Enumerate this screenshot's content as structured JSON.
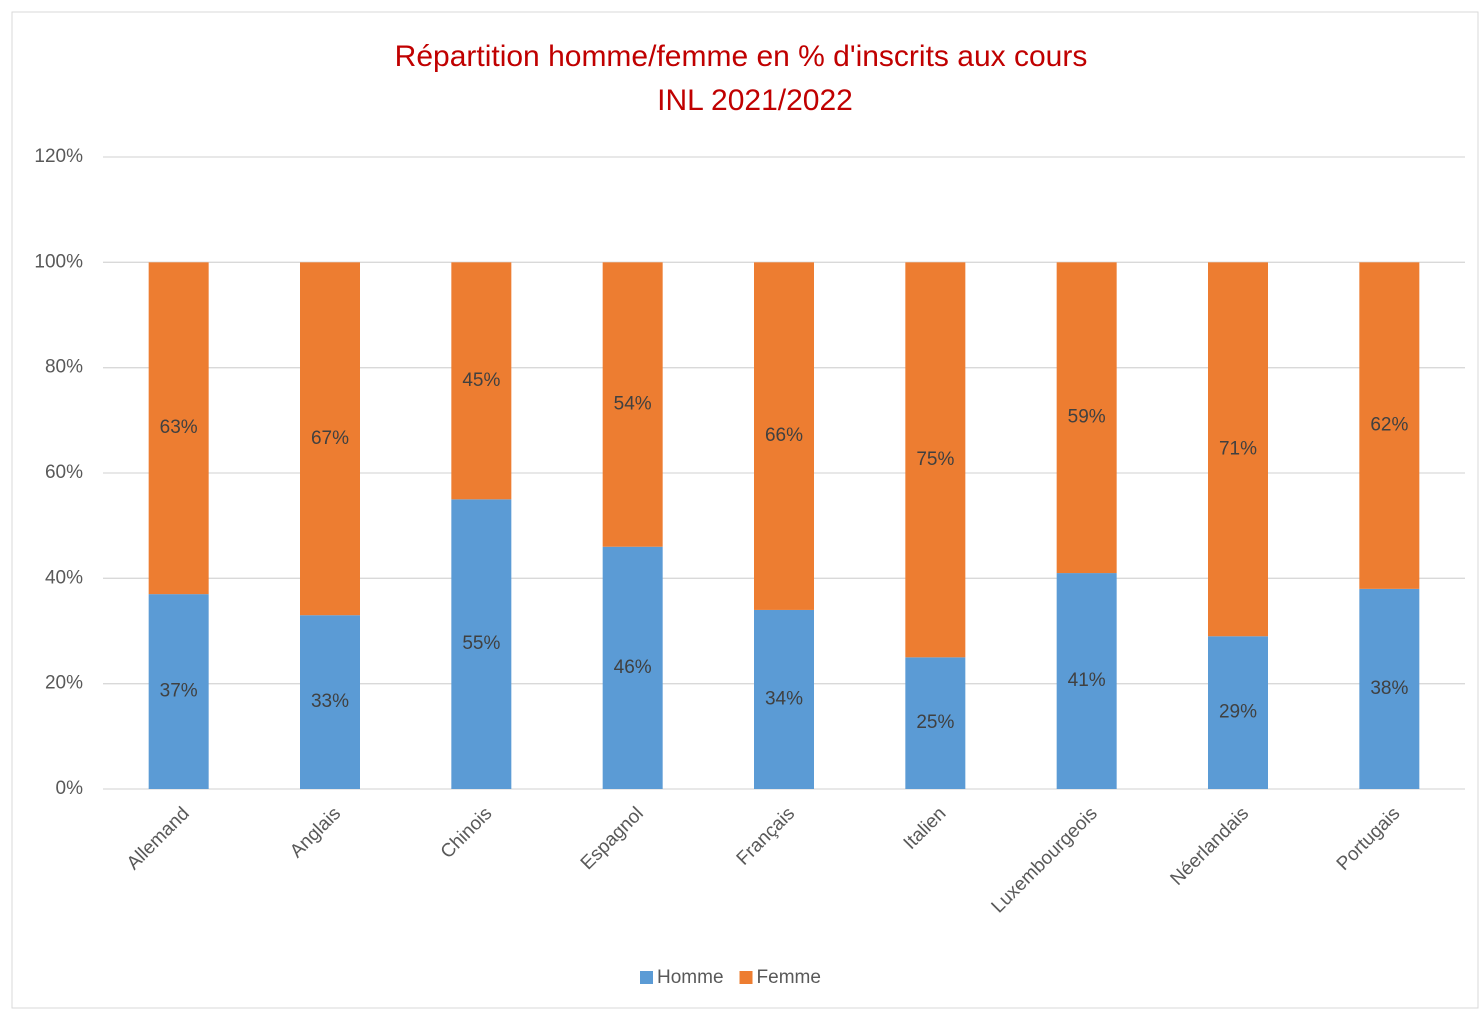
{
  "chart_data": {
    "type": "stacked_bar",
    "title": [
      "Répartition homme/femme en % d'inscrits aux cours",
      "INL 2021/2022"
    ],
    "categories": [
      "Allemand",
      "Anglais",
      "Chinois",
      "Espagnol",
      "Français",
      "Italien",
      "Luxembourgeois",
      "Néerlandais",
      "Portugais"
    ],
    "series": [
      {
        "name": "Homme",
        "color": "#5b9bd5",
        "values": [
          37,
          33,
          55,
          46,
          34,
          25,
          41,
          29,
          38
        ],
        "value_labels": [
          "37%",
          "33%",
          "55%",
          "46%",
          "34%",
          "25%",
          "41%",
          "29%",
          "38%"
        ]
      },
      {
        "name": "Femme",
        "color": "#ed7d31",
        "values": [
          63,
          67,
          45,
          54,
          66,
          75,
          59,
          71,
          62
        ],
        "value_labels": [
          "63%",
          "67%",
          "45%",
          "54%",
          "66%",
          "75%",
          "59%",
          "71%",
          "62%"
        ]
      }
    ],
    "ylim": [
      0,
      120
    ],
    "yticks": [
      {
        "value": 0,
        "label": "0%"
      },
      {
        "value": 20,
        "label": "20%"
      },
      {
        "value": 40,
        "label": "40%"
      },
      {
        "value": 60,
        "label": "60%"
      },
      {
        "value": 80,
        "label": "80%"
      },
      {
        "value": 100,
        "label": "100%"
      },
      {
        "value": 120,
        "label": "120%"
      }
    ],
    "grid": true,
    "legend": "bottom"
  }
}
